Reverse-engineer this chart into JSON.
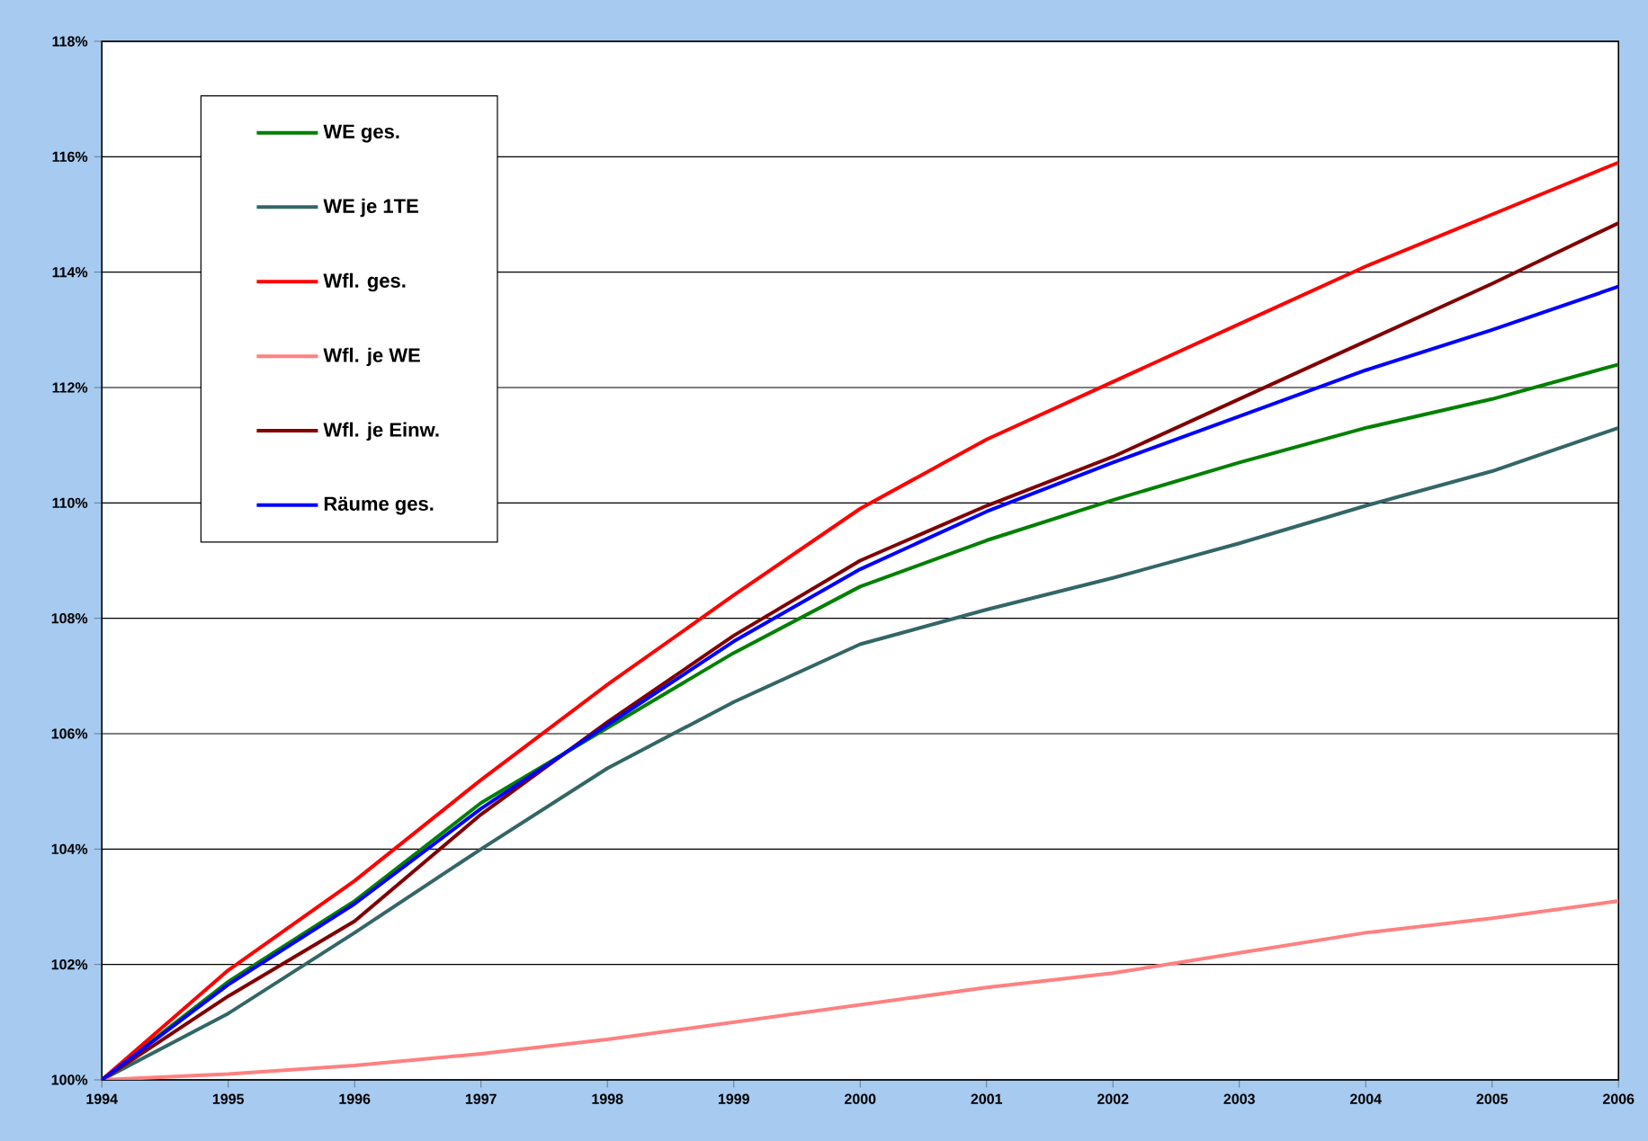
{
  "chart_data": {
    "type": "line",
    "x": [
      1994,
      1995,
      1996,
      1997,
      1998,
      1999,
      2000,
      2001,
      2002,
      2003,
      2004,
      2005,
      2006
    ],
    "series": [
      {
        "name": "WE ges.",
        "color": "#008000",
        "values": [
          100,
          101.7,
          103.1,
          104.8,
          106.1,
          107.4,
          108.55,
          109.35,
          110.05,
          110.7,
          111.3,
          111.8,
          112.4
        ]
      },
      {
        "name": "WE je 1TE",
        "color": "#336666",
        "values": [
          100,
          101.15,
          102.55,
          104.0,
          105.4,
          106.55,
          107.55,
          108.15,
          108.7,
          109.3,
          109.95,
          110.55,
          111.3
        ]
      },
      {
        "name": "Wfl. ges.",
        "color": "#ff0000",
        "values": [
          100,
          101.9,
          103.45,
          105.2,
          106.85,
          108.4,
          109.9,
          111.1,
          112.1,
          113.1,
          114.1,
          115.0,
          115.9
        ]
      },
      {
        "name": "Wfl. je WE",
        "color": "#ff8080",
        "values": [
          100,
          100.1,
          100.25,
          100.45,
          100.7,
          101.0,
          101.3,
          101.6,
          101.85,
          102.2,
          102.55,
          102.8,
          103.1
        ]
      },
      {
        "name": "Wfl. je Einw.",
        "color": "#800000",
        "values": [
          100,
          101.45,
          102.75,
          104.6,
          106.2,
          107.7,
          109.0,
          109.95,
          110.8,
          111.8,
          112.8,
          113.8,
          114.85
        ]
      },
      {
        "name": "Räume ges.",
        "color": "#0000ff",
        "values": [
          100,
          101.65,
          103.05,
          104.7,
          106.15,
          107.6,
          108.85,
          109.85,
          110.7,
          111.5,
          112.3,
          113.0,
          113.75
        ]
      }
    ],
    "xlim": [
      1994,
      2006
    ],
    "xticks": [
      1994,
      1995,
      1996,
      1997,
      1998,
      1999,
      2000,
      2001,
      2002,
      2003,
      2004,
      2005,
      2006
    ],
    "ylim": [
      100,
      118
    ],
    "yticks": [
      {
        "value": 100,
        "label": "100%"
      },
      {
        "value": 102,
        "label": "102%"
      },
      {
        "value": 104,
        "label": "104%"
      },
      {
        "value": 106,
        "label": "106%"
      },
      {
        "value": 108,
        "label": "108%"
      },
      {
        "value": 110,
        "label": "110%"
      },
      {
        "value": 112,
        "label": "112%"
      },
      {
        "value": 114,
        "label": "114%"
      },
      {
        "value": 116,
        "label": "116%"
      },
      {
        "value": 118,
        "label": "118%"
      }
    ],
    "grid": "y",
    "legend": "top left"
  }
}
